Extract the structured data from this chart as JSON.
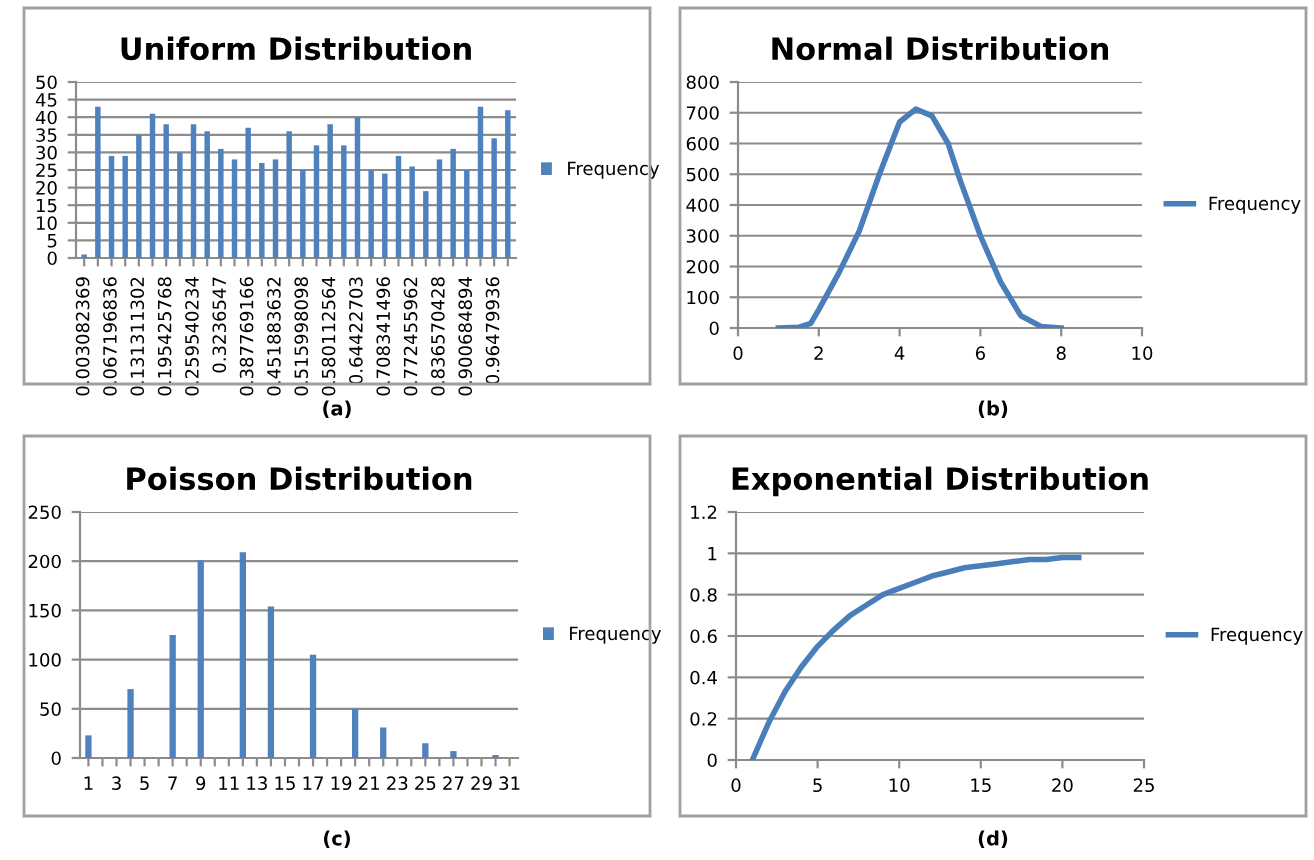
{
  "chart_data": [
    {
      "type": "bar",
      "title": "Uniform Distribution",
      "categories": [
        "0.003082369",
        null,
        "0.067196836",
        null,
        "0.131311302",
        null,
        "0.195425768",
        null,
        "0.259540234",
        null,
        "0.3236547",
        null,
        "0.387769166",
        null,
        "0.451883632",
        null,
        "0.515998098",
        null,
        "0.580112564",
        null,
        "0.64422703",
        null,
        "0.708341496",
        null,
        "0.772455962",
        null,
        "0.836570428",
        null,
        "0.900684894",
        null,
        "0.96479936",
        null
      ],
      "series": [
        {
          "name": "Frequency",
          "color": "#4f81bd",
          "values": [
            1,
            43,
            29,
            29,
            35,
            41,
            38,
            30,
            38,
            36,
            31,
            28,
            37,
            27,
            28,
            36,
            25,
            32,
            38,
            32,
            40,
            25,
            24,
            29,
            26,
            19,
            28,
            31,
            25,
            43,
            34,
            42
          ]
        }
      ],
      "ylim": [
        0,
        50
      ],
      "yticks": [
        0,
        5,
        10,
        15,
        20,
        25,
        30,
        35,
        40,
        45,
        50
      ],
      "grid": "y",
      "legend": "right",
      "annotations": [
        "(a)"
      ]
    },
    {
      "type": "line",
      "title": "Normal Distribution",
      "x": [
        1,
        1.5,
        1.8,
        2,
        2.5,
        3,
        3.5,
        4,
        4.4,
        4.8,
        5.2,
        5.5,
        6,
        6.5,
        7,
        7.5,
        8
      ],
      "series": [
        {
          "name": "Frequency",
          "color": "#4a7ebb",
          "values": [
            0,
            2,
            15,
            60,
            180,
            315,
            500,
            670,
            712,
            690,
            600,
            480,
            300,
            150,
            40,
            5,
            0
          ]
        }
      ],
      "xlim": [
        0,
        10
      ],
      "xticks": [
        0,
        2,
        4,
        6,
        8,
        10
      ],
      "ylim": [
        0,
        800
      ],
      "yticks": [
        0,
        100,
        200,
        300,
        400,
        500,
        600,
        700,
        800
      ],
      "grid": "y",
      "legend": "right",
      "marker": "none",
      "annotations": [
        "(b)"
      ]
    },
    {
      "type": "bar",
      "title": "Poisson Distribution",
      "categories": [
        "1",
        null,
        "3",
        null,
        "5",
        null,
        "7",
        null,
        "9",
        null,
        "11",
        null,
        "13",
        null,
        "15",
        null,
        "17",
        null,
        "19",
        null,
        "21",
        null,
        "23",
        null,
        "25",
        null,
        "27",
        null,
        "29",
        null,
        "31"
      ],
      "series": [
        {
          "name": "Frequency",
          "color": "#4f81bd",
          "values": [
            23,
            null,
            null,
            70,
            null,
            null,
            125,
            null,
            201,
            null,
            null,
            209,
            null,
            154,
            null,
            null,
            105,
            null,
            null,
            50,
            null,
            31,
            null,
            null,
            15,
            null,
            7,
            null,
            null,
            3,
            null
          ]
        }
      ],
      "ylim": [
        0,
        250
      ],
      "yticks": [
        0,
        50,
        100,
        150,
        200,
        250
      ],
      "grid": "y",
      "legend": "right",
      "annotations": [
        "(c)"
      ]
    },
    {
      "type": "line",
      "title": "Exponential Distribution",
      "x": [
        1,
        2,
        3,
        4,
        5,
        6,
        7,
        8,
        9,
        10,
        11,
        12,
        13,
        14,
        15,
        16,
        17,
        18,
        19,
        20,
        21
      ],
      "series": [
        {
          "name": "Frequency",
          "color": "#4a7ebb",
          "values": [
            0,
            0.18,
            0.33,
            0.45,
            0.55,
            0.63,
            0.7,
            0.75,
            0.8,
            0.83,
            0.86,
            0.89,
            0.91,
            0.93,
            0.94,
            0.95,
            0.96,
            0.97,
            0.97,
            0.98,
            0.98
          ]
        }
      ],
      "xlim": [
        0,
        25
      ],
      "xticks": [
        0,
        5,
        10,
        15,
        20,
        25
      ],
      "ylim": [
        0,
        1.2
      ],
      "yticks": [
        0,
        0.2,
        0.4,
        0.6,
        0.8,
        1,
        1.2
      ],
      "grid": "y",
      "legend": "right",
      "marker": "none",
      "annotations": [
        "(d)"
      ]
    }
  ]
}
